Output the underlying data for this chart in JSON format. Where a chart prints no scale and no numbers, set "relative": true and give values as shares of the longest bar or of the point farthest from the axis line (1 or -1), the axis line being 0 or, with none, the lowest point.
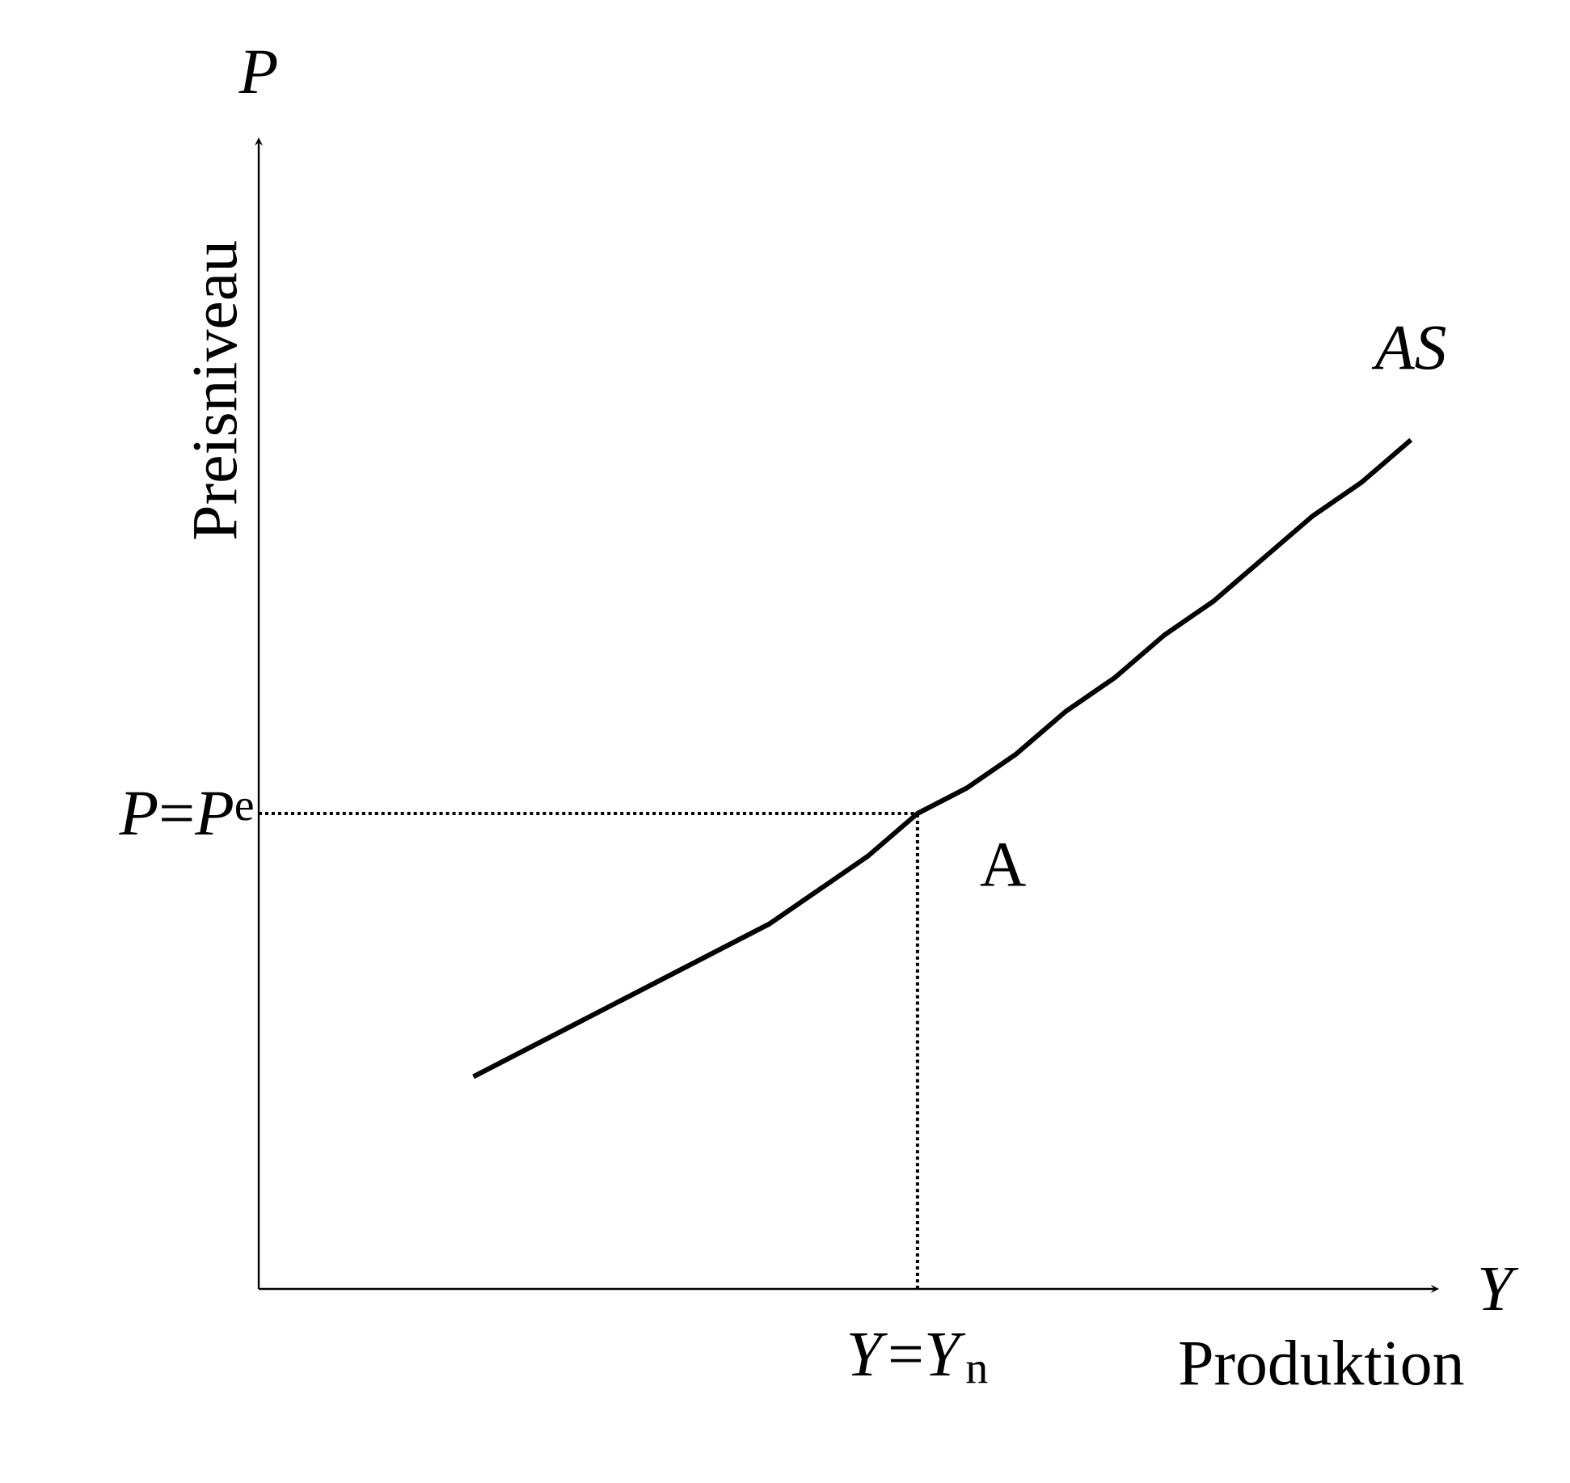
{
  "chart_data": {
    "type": "line",
    "relative": true,
    "xlabel": "Produktion",
    "ylabel": "Preisniveau",
    "categories": [
      null,
      null,
      null,
      null,
      null,
      null,
      null,
      null,
      null,
      null,
      null,
      null,
      null,
      null,
      null,
      null,
      null,
      null,
      null,
      null
    ],
    "series": [
      {
        "name": "AS",
        "color": "#000000",
        "values": [
          0.25,
          0.28,
          0.31,
          0.34,
          0.37,
          0.4,
          0.43,
          0.47,
          0.51,
          0.56,
          0.59,
          0.63,
          0.68,
          0.72,
          0.77,
          0.81,
          0.86,
          0.91,
          0.95,
          1
        ]
      }
    ],
    "ref_lines": [
      {
        "axis": "y",
        "value": 0.56,
        "label": "*P*=*P*$^{e}$",
        "line_style": "dotted"
      }
    ],
    "annotations": [
      "P",
      "Y",
      "A",
      "*Y*=*Y*$_{n}$"
    ]
  }
}
